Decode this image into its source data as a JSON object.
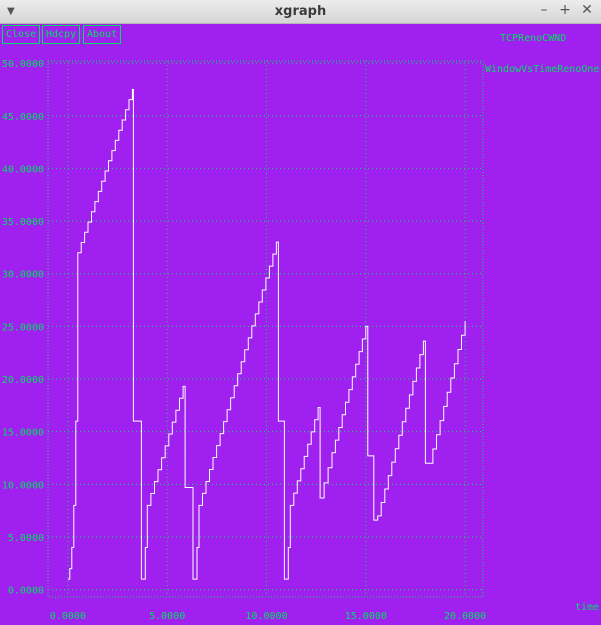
{
  "window": {
    "title": "xgraph"
  },
  "toolbar": {
    "close_label": "Close",
    "hdcpy_label": "Hdcpy",
    "about_label": "About"
  },
  "colors": {
    "background": "#a020f0",
    "accent": "#00e060",
    "line": "#ffffff"
  },
  "chart_data": {
    "type": "line",
    "title": "TCPRenoCWND",
    "ylabel": "WindowVsTimeRenoOne",
    "xlabel": "time",
    "xlim": [
      -1.0,
      20.9
    ],
    "ylim": [
      -0.7,
      50.2
    ],
    "xticks": [
      "0.0000",
      "5.0000",
      "10.0000",
      "15.0000",
      "20.0000"
    ],
    "xtick_values": [
      0,
      5,
      10,
      15,
      20
    ],
    "yticks": [
      "0.0000",
      "5.0000",
      "10.0000",
      "15.0000",
      "20.0000",
      "25.0000",
      "30.0000",
      "35.0000",
      "40.0000",
      "45.0000",
      "50.0000"
    ],
    "ytick_values": [
      0,
      5,
      10,
      15,
      20,
      25,
      30,
      35,
      40,
      45,
      50
    ],
    "grid": "dotted",
    "series": [
      {
        "name": "",
        "segments": [
          {
            "start": [
              0.0,
              1.0
            ],
            "steps": [
              [
                0.1,
                2
              ],
              [
                0.2,
                4
              ],
              [
                0.3,
                8
              ],
              [
                0.4,
                16
              ],
              [
                0.5,
                32
              ],
              [
                3.25,
                47.5
              ],
              [
                3.3,
                16
              ],
              [
                3.6,
                16
              ],
              [
                3.7,
                1
              ],
              [
                3.9,
                4
              ],
              [
                4.0,
                8
              ],
              [
                5.8,
                19.3
              ],
              [
                5.9,
                9.7
              ],
              [
                6.2,
                9.7
              ],
              [
                6.3,
                1
              ],
              [
                6.5,
                4
              ],
              [
                6.6,
                8
              ],
              [
                10.5,
                33
              ],
              [
                10.6,
                16
              ],
              [
                10.8,
                16
              ],
              [
                10.9,
                1
              ],
              [
                11.1,
                4
              ],
              [
                11.2,
                8
              ],
              [
                12.6,
                17.3
              ],
              [
                12.7,
                8.7
              ],
              [
                13.3,
                13
              ],
              [
                15.0,
                25
              ],
              [
                15.1,
                12.7
              ],
              [
                15.3,
                12.7
              ],
              [
                15.4,
                6.6
              ],
              [
                15.6,
                7
              ],
              [
                17.9,
                23.6
              ],
              [
                18.0,
                12
              ],
              [
                18.2,
                12
              ],
              [
                20.0,
                25.5
              ]
            ]
          }
        ]
      }
    ]
  }
}
